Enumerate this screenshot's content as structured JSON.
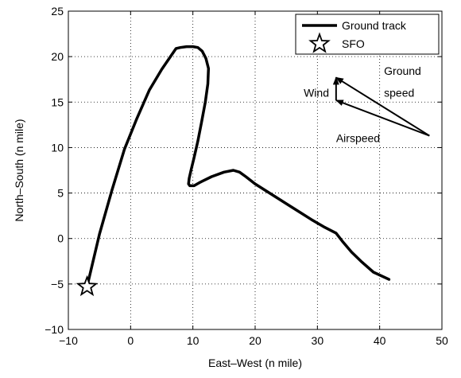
{
  "chart_data": {
    "type": "line",
    "xlabel": "East–West (n mile)",
    "ylabel": "North–South (n mile)",
    "xlim": [
      -10,
      50
    ],
    "ylim": [
      -10,
      25
    ],
    "xticks": [
      -10,
      0,
      10,
      20,
      30,
      40,
      50
    ],
    "yticks": [
      -10,
      -5,
      0,
      5,
      10,
      15,
      20,
      25
    ],
    "xtick_labels": [
      "−10",
      "0",
      "10",
      "20",
      "30",
      "40",
      "50"
    ],
    "ytick_labels": [
      "−10",
      "−5",
      "0",
      "5",
      "10",
      "15",
      "20",
      "25"
    ],
    "grid": true,
    "legend": {
      "placement": "top-right",
      "entries": [
        "Ground track",
        "SFO"
      ]
    },
    "series": [
      {
        "name": "Ground track",
        "x": [
          -7,
          -5,
          -3,
          -1,
          1,
          3,
          5,
          6,
          7.3,
          8,
          9,
          10,
          10.8,
          11.5,
          12.1,
          12.5,
          12.4,
          12,
          11.4,
          10.8,
          10.2,
          9.7,
          9.4,
          9.3,
          9.5,
          10.2,
          11.2,
          13,
          15,
          16.5,
          17.5,
          18.5,
          20,
          23,
          26,
          29,
          31,
          33,
          34,
          35.5,
          37,
          39,
          41.5
        ],
        "y": [
          -5.3,
          0.5,
          5.3,
          9.8,
          13.2,
          16.3,
          18.6,
          19.6,
          20.9,
          21.0,
          21.1,
          21.1,
          21.0,
          20.6,
          19.8,
          18.7,
          17.0,
          15.0,
          12.8,
          10.7,
          8.9,
          7.5,
          6.6,
          6.0,
          5.8,
          5.8,
          6.2,
          6.8,
          7.3,
          7.5,
          7.3,
          6.8,
          6.0,
          4.7,
          3.4,
          2.1,
          1.3,
          0.6,
          -0.3,
          -1.5,
          -2.5,
          -3.7,
          -4.5
        ]
      }
    ],
    "marker": {
      "name": "SFO",
      "x": -7,
      "y": -5.3
    },
    "vectors": {
      "origin": [
        48,
        11.3
      ],
      "ground_speed_tip": [
        33,
        17.7
      ],
      "airspeed_tip": [
        33,
        15.2
      ],
      "wind_from": [
        33,
        15.2
      ],
      "wind_to": [
        33,
        17.7
      ]
    },
    "annotations": [
      {
        "text": "Wind",
        "x": 27.8,
        "y": 15.6
      },
      {
        "text": "Ground",
        "x": 40.7,
        "y": 18.0
      },
      {
        "text": "speed",
        "x": 40.7,
        "y": 15.6
      },
      {
        "text": "Airspeed",
        "x": 33.0,
        "y": 10.6
      }
    ]
  }
}
